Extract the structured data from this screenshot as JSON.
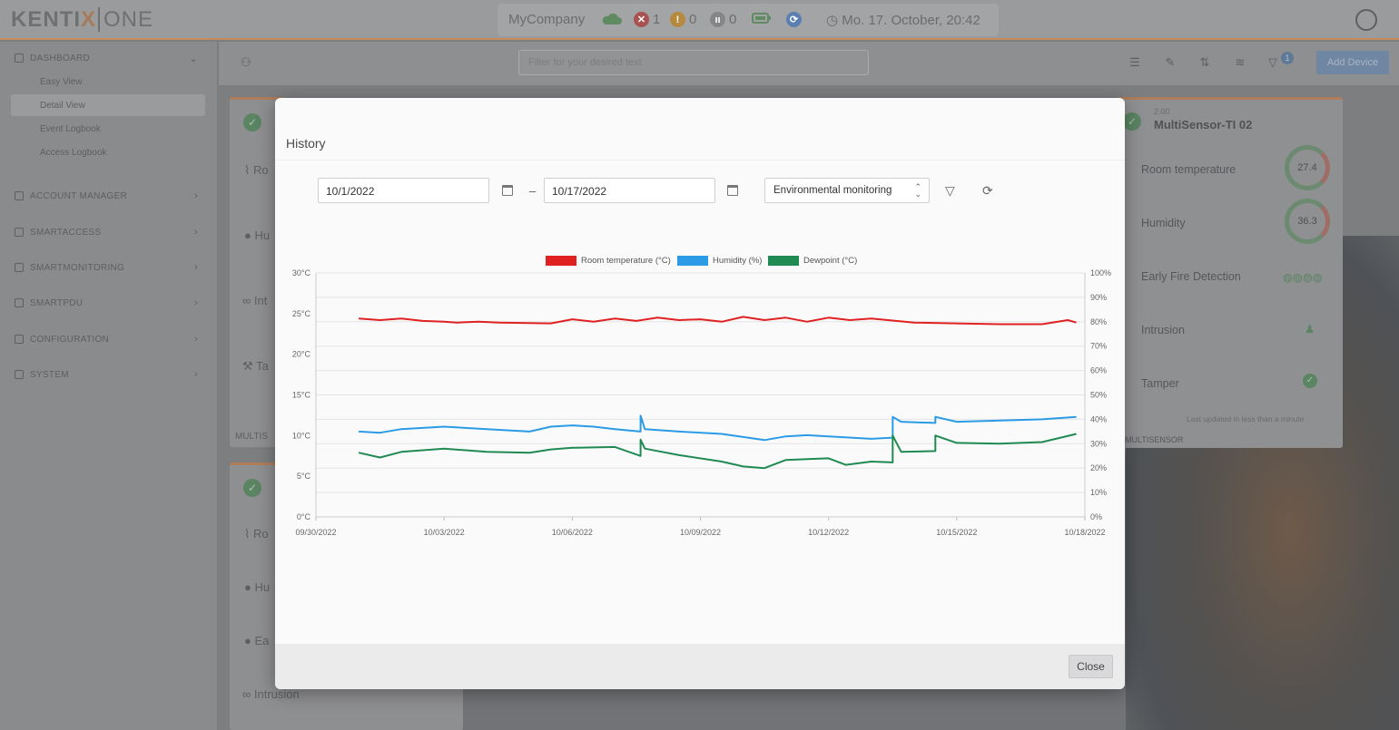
{
  "app": {
    "logo_main": "KENTI",
    "logo_x": "X",
    "logo_one": "ONE",
    "company": "MyCompany",
    "alarm_count": "1",
    "warning_count": "0",
    "info_count": "0",
    "datetime": "Mo. 17. October, 20:42"
  },
  "sidebar": {
    "dashboard": "DASHBOARD",
    "sub_items": [
      "Easy View",
      "Detail View",
      "Event Logbook",
      "Access Logbook"
    ],
    "items": [
      "ACCOUNT MANAGER",
      "SMARTACCESS",
      "SMARTMONITORING",
      "SMARTPDU",
      "CONFIGURATION",
      "SYSTEM"
    ]
  },
  "toolbar": {
    "search_placeholder": "Filter for your desired text",
    "filter_badge": "1",
    "add_device": "Add Device"
  },
  "background_cards": {
    "left_rows_top": [
      "Ro",
      "Hu",
      "Int",
      "Ta"
    ],
    "left_foot": "MULTIS",
    "left_rows_bottom": [
      "Ro",
      "Hu",
      "Ea",
      "Intrusion"
    ],
    "right": {
      "subtitle": "2.00",
      "title": "MultiSensor-TI 02",
      "rows": [
        "Room temperature",
        "Humidity",
        "Early Fire Detection",
        "Intrusion",
        "Tamper"
      ],
      "temp_value": "27.4",
      "humidity_value": "36.3",
      "updated": "Last updated in less than a minute",
      "foot": "MULTISENSOR"
    }
  },
  "modal": {
    "title": "History",
    "date_from": "10/1/2022",
    "date_separator": "–",
    "date_to": "10/17/2022",
    "select_value": "Environmental monitoring",
    "close_label": "Close"
  },
  "chart_data": {
    "type": "line",
    "legend_position": "top",
    "grid": true,
    "x_ticks": [
      "09/30/2022",
      "10/03/2022",
      "10/06/2022",
      "10/09/2022",
      "10/12/2022",
      "10/15/2022",
      "10/18/2022"
    ],
    "y_left_ticks": [
      "0°C",
      "5°C",
      "10°C",
      "15°C",
      "20°C",
      "25°C",
      "30°C"
    ],
    "y_right_ticks": [
      "0%",
      "10%",
      "20%",
      "30%",
      "40%",
      "50%",
      "60%",
      "70%",
      "80%",
      "90%",
      "100%"
    ],
    "ylim_left": [
      0,
      30
    ],
    "ylim_right": [
      0,
      100
    ],
    "x_range_days": [
      0,
      18
    ],
    "series": [
      {
        "name": "Room temperature (°C)",
        "color": "#e02121",
        "axis": "left",
        "x": [
          1,
          1.5,
          2,
          2.5,
          3,
          3.3,
          3.8,
          4.3,
          5.5,
          6,
          6.5,
          7,
          7.5,
          8,
          8.5,
          9,
          9.5,
          10,
          10.5,
          11,
          11.5,
          12,
          12.5,
          13,
          14,
          15,
          16,
          17,
          17.6,
          17.8
        ],
        "y": [
          24.4,
          24.2,
          24.4,
          24.1,
          24.0,
          23.9,
          24.0,
          23.9,
          23.8,
          24.3,
          24.0,
          24.4,
          24.1,
          24.5,
          24.2,
          24.3,
          24.0,
          24.6,
          24.2,
          24.5,
          24.0,
          24.5,
          24.2,
          24.4,
          23.9,
          23.8,
          23.7,
          23.7,
          24.2,
          23.9
        ]
      },
      {
        "name": "Humidity (%)",
        "color": "#2b9be6",
        "axis": "right",
        "x": [
          1,
          1.5,
          2,
          3,
          4,
          5,
          5.5,
          6,
          6.5,
          7,
          7.6,
          7.6,
          7.7,
          8.5,
          9.5,
          10.5,
          11,
          11.5,
          12,
          13,
          13.5,
          13.5,
          13.7,
          14.5,
          14.5,
          15,
          16,
          17,
          17.8
        ],
        "y": [
          35,
          34.5,
          36,
          37,
          36,
          35,
          37,
          37.5,
          37,
          36,
          35,
          41.5,
          36,
          35,
          34,
          31.5,
          33,
          33.5,
          33,
          32,
          32.5,
          41,
          39,
          38.5,
          41,
          39,
          39.5,
          40,
          41
        ]
      },
      {
        "name": "Dewpoint (°C)",
        "color": "#1f8a52",
        "axis": "left",
        "x": [
          1,
          1.5,
          2,
          3,
          4,
          5,
          5.5,
          6,
          7,
          7.6,
          7.6,
          7.7,
          8.5,
          9.5,
          10,
          10.5,
          11,
          12,
          12.4,
          13,
          13.5,
          13.5,
          13.7,
          14.5,
          14.5,
          15,
          16,
          17,
          17.8
        ],
        "y": [
          7.9,
          7.3,
          8.0,
          8.4,
          8.0,
          7.9,
          8.3,
          8.5,
          8.6,
          7.5,
          9.5,
          8.4,
          7.6,
          6.8,
          6.2,
          6.0,
          7.0,
          7.2,
          6.4,
          6.8,
          6.7,
          10.0,
          8.0,
          8.1,
          10.0,
          9.1,
          9.0,
          9.2,
          10.2
        ]
      }
    ]
  }
}
